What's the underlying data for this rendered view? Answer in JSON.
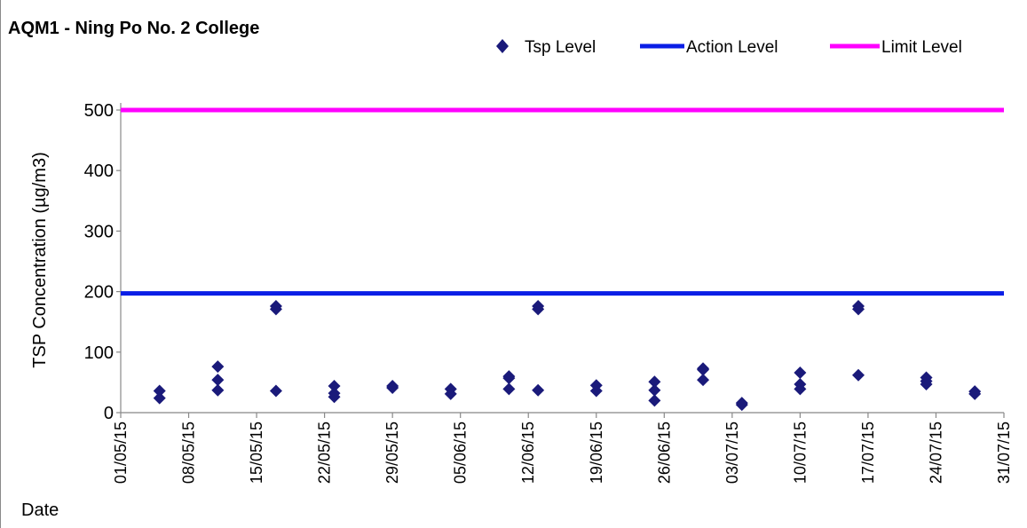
{
  "chart_data": {
    "type": "scatter",
    "title": "AQM1 - Ning Po No. 2 College",
    "xlabel": "Date",
    "ylabel": "TSP Concentration (µg/m3)",
    "ylim": [
      0,
      500
    ],
    "yticks": [
      "0",
      "100",
      "200",
      "300",
      "400",
      "500"
    ],
    "xlim": [
      "2015-05-01",
      "2015-07-31"
    ],
    "xticks": [
      "01/05/15",
      "08/05/15",
      "15/05/15",
      "22/05/15",
      "29/05/15",
      "05/06/15",
      "12/06/15",
      "19/06/15",
      "26/06/15",
      "03/07/15",
      "10/07/15",
      "17/07/15",
      "24/07/15",
      "31/07/15"
    ],
    "grid": false,
    "legend_position": "top-right",
    "series": [
      {
        "name": "Tsp Level",
        "kind": "scatter",
        "color": "#1a1a7a",
        "marker": "diamond",
        "points": [
          {
            "x": "2015-05-05",
            "y": 36
          },
          {
            "x": "2015-05-05",
            "y": 24
          },
          {
            "x": "2015-05-11",
            "y": 76
          },
          {
            "x": "2015-05-11",
            "y": 54
          },
          {
            "x": "2015-05-11",
            "y": 37
          },
          {
            "x": "2015-05-17",
            "y": 176
          },
          {
            "x": "2015-05-17",
            "y": 171
          },
          {
            "x": "2015-05-17",
            "y": 36
          },
          {
            "x": "2015-05-23",
            "y": 44
          },
          {
            "x": "2015-05-23",
            "y": 32
          },
          {
            "x": "2015-05-23",
            "y": 26
          },
          {
            "x": "2015-05-29",
            "y": 44
          },
          {
            "x": "2015-05-29",
            "y": 41
          },
          {
            "x": "2015-06-04",
            "y": 39
          },
          {
            "x": "2015-06-04",
            "y": 31
          },
          {
            "x": "2015-06-10",
            "y": 60
          },
          {
            "x": "2015-06-10",
            "y": 57
          },
          {
            "x": "2015-06-10",
            "y": 39
          },
          {
            "x": "2015-06-13",
            "y": 176
          },
          {
            "x": "2015-06-13",
            "y": 171
          },
          {
            "x": "2015-06-13",
            "y": 37
          },
          {
            "x": "2015-06-19",
            "y": 45
          },
          {
            "x": "2015-06-19",
            "y": 36
          },
          {
            "x": "2015-06-25",
            "y": 51
          },
          {
            "x": "2015-06-25",
            "y": 37
          },
          {
            "x": "2015-06-25",
            "y": 20
          },
          {
            "x": "2015-06-30",
            "y": 73
          },
          {
            "x": "2015-06-30",
            "y": 71
          },
          {
            "x": "2015-06-30",
            "y": 54
          },
          {
            "x": "2015-07-04",
            "y": 16
          },
          {
            "x": "2015-07-04",
            "y": 13
          },
          {
            "x": "2015-07-10",
            "y": 66
          },
          {
            "x": "2015-07-10",
            "y": 47
          },
          {
            "x": "2015-07-10",
            "y": 39
          },
          {
            "x": "2015-07-16",
            "y": 176
          },
          {
            "x": "2015-07-16",
            "y": 171
          },
          {
            "x": "2015-07-16",
            "y": 62
          },
          {
            "x": "2015-07-23",
            "y": 58
          },
          {
            "x": "2015-07-23",
            "y": 52
          },
          {
            "x": "2015-07-23",
            "y": 47
          },
          {
            "x": "2015-07-28",
            "y": 35
          },
          {
            "x": "2015-07-28",
            "y": 31
          }
        ]
      },
      {
        "name": "Action Level",
        "kind": "line",
        "color": "#0a1ee6",
        "y": 197
      },
      {
        "name": "Limit Level",
        "kind": "line",
        "color": "#ff00ff",
        "y": 500
      }
    ]
  }
}
